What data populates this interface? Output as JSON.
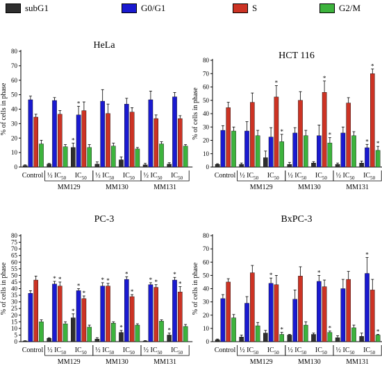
{
  "legend": [
    {
      "label": "subG1",
      "color": "#2e2e2e"
    },
    {
      "label": "G0/G1",
      "color": "#1a1ad0"
    },
    {
      "label": "S",
      "color": "#cc3324"
    },
    {
      "label": "G2/M",
      "color": "#3db33d"
    }
  ],
  "chart_data": [
    {
      "type": "bar",
      "title": "HeLa",
      "ylabel": "% of cells in phase",
      "ylim": [
        0,
        80
      ],
      "yticks": [
        0,
        10,
        20,
        30,
        40,
        50,
        60,
        70,
        80
      ],
      "categories": [
        "Control",
        "½ IC50",
        "IC50",
        "½ IC50",
        "IC50",
        "½ IC50",
        "IC50"
      ],
      "category_labels": [
        {
          "main": "Control",
          "sub": ""
        },
        {
          "main": "½ IC",
          "sub": "50"
        },
        {
          "main": "IC",
          "sub": "50"
        },
        {
          "main": "½ IC",
          "sub": "50"
        },
        {
          "main": "IC",
          "sub": "50"
        },
        {
          "main": "½ IC",
          "sub": "50"
        },
        {
          "main": "IC",
          "sub": "50"
        }
      ],
      "groups": [
        "MM129",
        "MM130",
        "MM131"
      ],
      "series": [
        {
          "name": "subG1",
          "values": [
            1,
            2,
            13.5,
            2,
            5,
            1.5,
            2
          ],
          "errors": [
            0.5,
            0.5,
            3,
            1.5,
            2,
            1,
            1
          ],
          "stars": [
            0,
            0,
            1,
            0,
            0,
            0,
            0
          ]
        },
        {
          "name": "G0/G1",
          "values": [
            46.5,
            46,
            36,
            45.5,
            43.5,
            46.5,
            48.5
          ],
          "errors": [
            2.5,
            2,
            6,
            8,
            4,
            6,
            3
          ],
          "stars": [
            0,
            0,
            1,
            0,
            0,
            0,
            0
          ]
        },
        {
          "name": "S",
          "values": [
            34.5,
            36.5,
            39,
            37,
            38,
            33.5,
            33.5
          ],
          "errors": [
            2,
            2.5,
            6,
            6.5,
            3,
            2.5,
            2
          ],
          "stars": [
            0,
            0,
            0,
            0,
            0,
            0,
            0
          ]
        },
        {
          "name": "G2/M",
          "values": [
            16,
            14,
            13.5,
            14.5,
            12.5,
            16,
            14.5
          ],
          "errors": [
            2.5,
            1.5,
            2,
            2,
            1,
            1.5,
            1
          ],
          "stars": [
            0,
            0,
            0,
            0,
            0,
            0,
            0
          ]
        }
      ]
    },
    {
      "type": "bar",
      "title": "HCT 116",
      "ylabel": "% of cells in phase",
      "ylim": [
        0,
        80
      ],
      "yticks": [
        0,
        10,
        20,
        30,
        40,
        50,
        60,
        70,
        80
      ],
      "categories": [
        "Control",
        "½ IC50",
        "IC50",
        "½ IC50",
        "IC50",
        "½ IC50",
        "IC50"
      ],
      "category_labels": [
        {
          "main": "Control",
          "sub": ""
        },
        {
          "main": "½ IC",
          "sub": "50"
        },
        {
          "main": "IC",
          "sub": "50"
        },
        {
          "main": "½ IC",
          "sub": "50"
        },
        {
          "main": "IC",
          "sub": "50"
        },
        {
          "main": "½ IC",
          "sub": "50"
        },
        {
          "main": "IC",
          "sub": "50"
        }
      ],
      "groups": [
        "MM129",
        "MM130",
        "MM131"
      ],
      "series": [
        {
          "name": "subG1",
          "values": [
            2,
            2,
            7,
            2,
            3,
            2,
            3
          ],
          "errors": [
            0.5,
            1,
            5,
            1.5,
            1,
            1,
            1.5
          ],
          "stars": [
            0,
            0,
            0,
            0,
            0,
            0,
            0
          ]
        },
        {
          "name": "G0/G1",
          "values": [
            27.5,
            27,
            22.5,
            25.5,
            23.5,
            25.5,
            14.5
          ],
          "errors": [
            3.5,
            7,
            7,
            4,
            8,
            4.5,
            2.5
          ],
          "stars": [
            0,
            0,
            0,
            0,
            0,
            0,
            1
          ]
        },
        {
          "name": "S",
          "values": [
            44.5,
            48.5,
            52.5,
            50,
            56,
            48,
            70
          ],
          "errors": [
            4,
            7,
            8.5,
            6.5,
            8.5,
            4,
            3.5
          ],
          "stars": [
            0,
            0,
            1,
            0,
            1,
            0,
            1
          ]
        },
        {
          "name": "G2/M",
          "values": [
            27,
            23.5,
            19,
            23.5,
            18,
            23.5,
            12.5
          ],
          "errors": [
            3,
            4,
            5.5,
            4,
            4,
            3,
            3
          ],
          "stars": [
            0,
            0,
            1,
            0,
            1,
            0,
            1
          ]
        }
      ]
    },
    {
      "type": "bar",
      "title": "PC-3",
      "ylabel": "% of cells in phase",
      "ylim": [
        0,
        80
      ],
      "yticks": [
        0,
        5,
        10,
        15,
        20,
        25,
        30,
        35,
        40,
        45,
        50,
        55,
        60,
        65,
        70,
        75,
        80
      ],
      "categories": [
        "Control",
        "½ IC50",
        "IC50",
        "½ IC50",
        "IC50",
        "½ IC50",
        "IC50"
      ],
      "category_labels": [
        {
          "main": "Control",
          "sub": ""
        },
        {
          "main": "½ IC",
          "sub": "50"
        },
        {
          "main": "IC",
          "sub": "50"
        },
        {
          "main": "½ IC",
          "sub": "50"
        },
        {
          "main": "IC",
          "sub": "50"
        },
        {
          "main": "½ IC",
          "sub": "50"
        },
        {
          "main": "IC",
          "sub": "50"
        }
      ],
      "groups": [
        "MM129",
        "MM130",
        "MM131"
      ],
      "series": [
        {
          "name": "subG1",
          "values": [
            0.5,
            2.5,
            18,
            2,
            7,
            0.5,
            5
          ],
          "errors": [
            0.2,
            0.5,
            3,
            1,
            1.5,
            0.3,
            1.5
          ],
          "stars": [
            0,
            0,
            1,
            0,
            1,
            0,
            1
          ]
        },
        {
          "name": "G0/G1",
          "values": [
            36.5,
            43.5,
            38.5,
            42,
            47,
            43,
            46.5
          ],
          "errors": [
            2,
            2,
            1.5,
            2.5,
            2,
            1.5,
            2
          ],
          "stars": [
            0,
            1,
            1,
            1,
            1,
            1,
            1
          ]
        },
        {
          "name": "S",
          "values": [
            46.5,
            42,
            32.5,
            42,
            34,
            41,
            37.5
          ],
          "errors": [
            3,
            3,
            2,
            2,
            1.5,
            2,
            4
          ],
          "stars": [
            0,
            1,
            1,
            1,
            1,
            1,
            1
          ]
        },
        {
          "name": "G2/M",
          "values": [
            15,
            13.5,
            11,
            14,
            12.5,
            15.5,
            11.5
          ],
          "errors": [
            1.5,
            1.5,
            1.5,
            1,
            1,
            1,
            1.5
          ],
          "stars": [
            0,
            0,
            0,
            0,
            0,
            0,
            0
          ]
        }
      ]
    },
    {
      "type": "bar",
      "title": "BxPC-3",
      "ylabel": "% of cells in phase",
      "ylim": [
        0,
        80
      ],
      "yticks": [
        0,
        10,
        20,
        30,
        40,
        50,
        60,
        70,
        80
      ],
      "categories": [
        "Control",
        "½ IC50",
        "IC50",
        "½ IC50",
        "IC50",
        "½ IC50",
        "IC50"
      ],
      "category_labels": [
        {
          "main": "Control",
          "sub": ""
        },
        {
          "main": "½ IC",
          "sub": "50"
        },
        {
          "main": "IC",
          "sub": "50"
        },
        {
          "main": "½ IC",
          "sub": "50"
        },
        {
          "main": "IC",
          "sub": "50"
        },
        {
          "main": "½ IC",
          "sub": "50"
        },
        {
          "main": "IC",
          "sub": "50"
        }
      ],
      "groups": [
        "MM129",
        "MM130",
        "MM131"
      ],
      "series": [
        {
          "name": "subG1",
          "values": [
            1.5,
            3.5,
            6.5,
            5,
            5.5,
            3,
            4
          ],
          "errors": [
            0.5,
            1.5,
            2,
            0.5,
            1,
            1.5,
            2.5
          ],
          "stars": [
            0,
            0,
            0,
            0,
            0,
            0,
            0
          ]
        },
        {
          "name": "G0/G1",
          "values": [
            32.5,
            29,
            44,
            32,
            45.5,
            40,
            51.5
          ],
          "errors": [
            3,
            5,
            4,
            7,
            4.5,
            7,
            12
          ],
          "stars": [
            0,
            0,
            1,
            0,
            1,
            0,
            1
          ]
        },
        {
          "name": "S",
          "values": [
            45,
            52,
            43,
            49.5,
            41.5,
            47,
            39
          ],
          "errors": [
            2.5,
            5.5,
            7,
            7,
            5,
            6,
            8
          ],
          "stars": [
            0,
            0,
            0,
            0,
            0,
            0,
            0
          ]
        },
        {
          "name": "G2/M",
          "values": [
            18,
            12,
            5.5,
            12.5,
            7,
            10.5,
            5
          ],
          "errors": [
            2.5,
            2.5,
            1.5,
            2.5,
            1,
            2,
            0.5
          ],
          "stars": [
            0,
            0,
            1,
            0,
            1,
            0,
            1
          ]
        }
      ]
    }
  ]
}
